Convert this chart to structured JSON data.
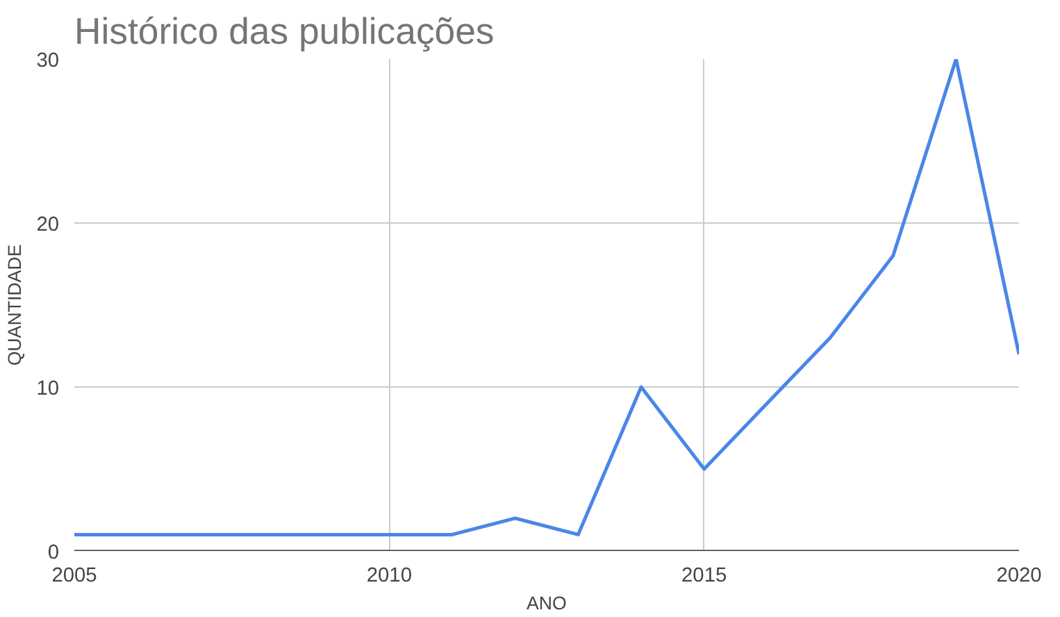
{
  "chart_data": {
    "type": "line",
    "title": "Histórico das publicações",
    "xlabel": "ANO",
    "ylabel": "QUANTIDADE",
    "x": [
      2005,
      2006,
      2007,
      2008,
      2009,
      2010,
      2011,
      2012,
      2013,
      2014,
      2015,
      2016,
      2017,
      2018,
      2019,
      2020
    ],
    "series": [
      {
        "color": "#4a86e8",
        "values": [
          1,
          1,
          1,
          1,
          1,
          1,
          1,
          2,
          1,
          10,
          5,
          9,
          13,
          18,
          30,
          12
        ]
      }
    ],
    "xlim": [
      2005,
      2020
    ],
    "xticks": [
      2005,
      2010,
      2015,
      2020
    ],
    "ylim": [
      0,
      30
    ],
    "yticks": [
      0,
      10,
      20,
      30
    ],
    "grid": true,
    "marker": "none",
    "line_style": "solid"
  }
}
